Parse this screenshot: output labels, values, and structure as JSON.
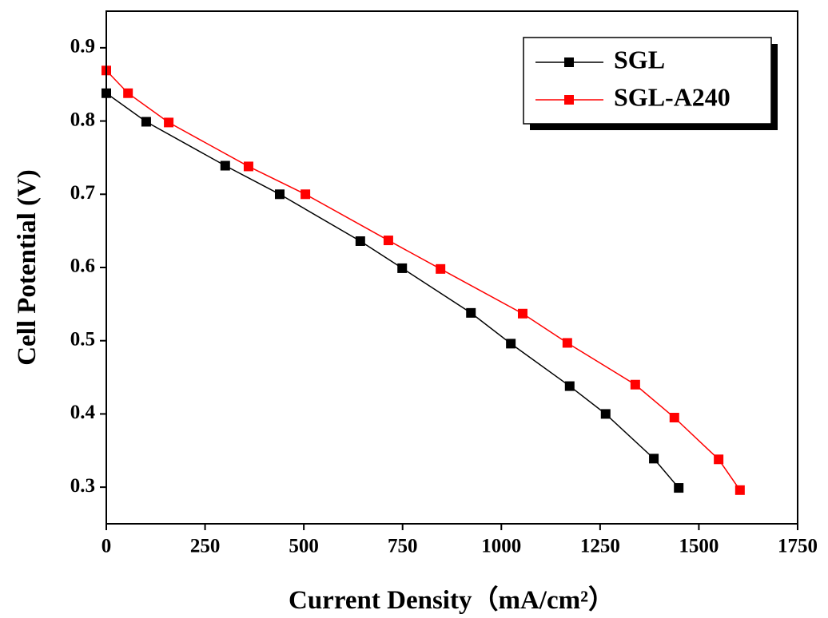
{
  "chart_data": {
    "type": "line",
    "x_label": "Current Density（mA/cm²）",
    "y_label": "Cell Potential (V)",
    "xlim": [
      0,
      1750
    ],
    "ylim": [
      0.25,
      0.95
    ],
    "xticks": [
      0,
      250,
      500,
      750,
      1000,
      1250,
      1500,
      1750
    ],
    "yticks": [
      0.3,
      0.4,
      0.5,
      0.6,
      0.7,
      0.8,
      0.9
    ],
    "legend": "upper right",
    "series": [
      {
        "name": "SGL",
        "color": "#000000",
        "x": [
          0,
          101,
          301,
          439,
          643,
          749,
          923,
          1024,
          1173,
          1264,
          1386,
          1449
        ],
        "values": [
          0.838,
          0.799,
          0.739,
          0.7,
          0.636,
          0.599,
          0.538,
          0.496,
          0.438,
          0.4,
          0.339,
          0.299
        ]
      },
      {
        "name": "SGL-A240",
        "color": "#ff0000",
        "x": [
          0,
          55,
          158,
          360,
          504,
          714,
          846,
          1054,
          1167,
          1339,
          1438,
          1550,
          1604
        ],
        "values": [
          0.869,
          0.838,
          0.798,
          0.738,
          0.7,
          0.637,
          0.598,
          0.537,
          0.497,
          0.44,
          0.395,
          0.338,
          0.296
        ]
      }
    ]
  }
}
